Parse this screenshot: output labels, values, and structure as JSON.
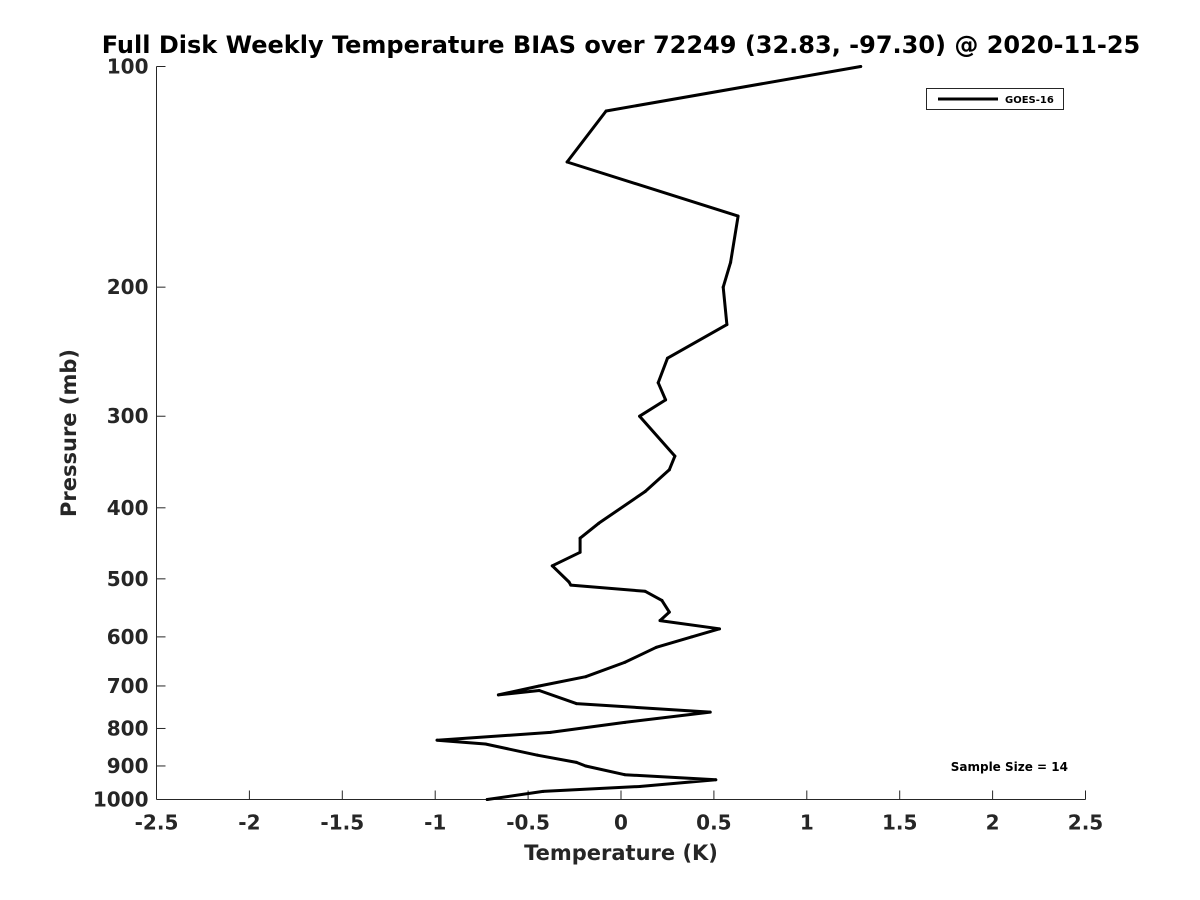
{
  "chart_data": {
    "type": "line",
    "title": "Full Disk Weekly Temperature BIAS over 72249 (32.83, -97.30) @ 2020-11-25",
    "xlabel": "Temperature (K)",
    "ylabel": "Pressure (mb)",
    "xlim": [
      -2.5,
      2.5
    ],
    "ylim": [
      100,
      1000
    ],
    "yscale": "log",
    "y_reversed": true,
    "grid": false,
    "legend_position": "top-right",
    "xticks": [
      -2.5,
      -2,
      -1.5,
      -1,
      -0.5,
      0,
      0.5,
      1,
      1.5,
      2,
      2.5
    ],
    "xtick_labels": [
      "-2.5",
      "-2",
      "-1.5",
      "-1",
      "-0.5",
      "0",
      "0.5",
      "1",
      "1.5",
      "2",
      "2.5"
    ],
    "yticks": [
      100,
      200,
      300,
      400,
      500,
      600,
      700,
      800,
      900,
      1000
    ],
    "ytick_labels": [
      "100",
      "200",
      "300",
      "400",
      "500",
      "600",
      "700",
      "800",
      "900",
      "1000"
    ],
    "series": [
      {
        "name": "GOES-16",
        "color": "#000000",
        "x": [
          -0.72,
          -0.42,
          0.1,
          0.51,
          0.02,
          -0.19,
          -0.24,
          -0.45,
          -0.73,
          -0.99,
          -0.38,
          0.02,
          0.48,
          -0.24,
          -0.44,
          -0.66,
          -0.44,
          -0.19,
          0.02,
          0.19,
          0.38,
          0.53,
          0.21,
          0.26,
          0.22,
          0.13,
          -0.27,
          -0.28,
          -0.37,
          -0.22,
          -0.22,
          -0.12,
          0.13,
          0.26,
          0.29,
          0.1,
          0.24,
          0.2,
          0.25,
          0.57,
          0.55,
          0.59,
          0.63,
          -0.29,
          -0.08,
          1.29
        ],
        "y": [
          1000,
          975,
          960,
          940,
          925,
          900,
          890,
          870,
          840,
          830,
          810,
          785,
          760,
          740,
          710,
          720,
          700,
          680,
          650,
          620,
          600,
          585,
          570,
          555,
          535,
          520,
          510,
          505,
          480,
          460,
          440,
          420,
          380,
          355,
          340,
          300,
          285,
          270,
          250,
          225,
          200,
          185,
          160,
          135,
          115,
          100
        ]
      }
    ],
    "annotations": [
      "Sample Size = 14"
    ]
  }
}
